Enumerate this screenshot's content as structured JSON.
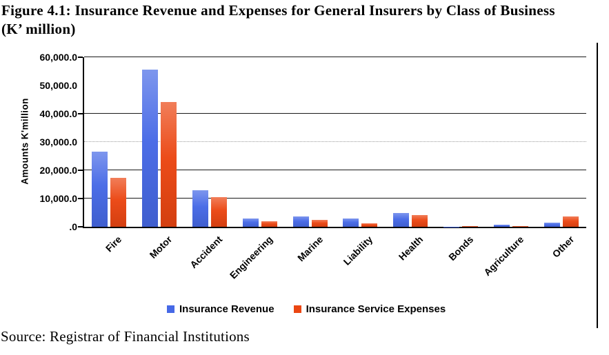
{
  "title": {
    "line1": "Figure 4.1: Insurance Revenue and Expenses for General Insurers by Class of Business",
    "line2": "(K’ million)"
  },
  "source": "Source: Registrar of Financial Institutions",
  "chart_data": {
    "type": "bar",
    "title": "Insurance Revenue and Expenses for General Insurers by Class of Business (K' million)",
    "ylabel": "Amounts  K'million",
    "xlabel": "",
    "categories": [
      "Fire",
      "Motor",
      "Accident",
      "Engineering",
      "Marine",
      "Liability",
      "Health",
      "Bonds",
      "Agriculture",
      "Other"
    ],
    "series": [
      {
        "name": "Insurance Revenue",
        "color": "#4669E6",
        "values": [
          26500,
          55500,
          13000,
          2900,
          3600,
          2900,
          4800,
          100,
          700,
          1500
        ]
      },
      {
        "name": "Insurance Service Expenses",
        "color": "#EB4612",
        "values": [
          17400,
          44200,
          10500,
          2000,
          2400,
          1300,
          4200,
          300,
          250,
          3600
        ]
      }
    ],
    "ylim": [
      0,
      60000
    ],
    "y_ticks": [
      {
        "value": 0,
        "label": ".0"
      },
      {
        "value": 10000,
        "label": "10,000.0"
      },
      {
        "value": 20000,
        "label": "20,000.0"
      },
      {
        "value": 30000,
        "label": "30,000.0"
      },
      {
        "value": 40000,
        "label": "40,000.0"
      },
      {
        "value": 50000,
        "label": "50,000.0"
      },
      {
        "value": 60000,
        "label": "60,000.0"
      }
    ],
    "gridlines": [
      {
        "value": 10000,
        "style": "strong"
      },
      {
        "value": 20000,
        "style": "strong"
      },
      {
        "value": 30000,
        "style": "faint"
      },
      {
        "value": 40000,
        "style": "strong"
      },
      {
        "value": 60000,
        "style": "strong"
      }
    ],
    "grid": "horizontal",
    "legend_position": "bottom"
  }
}
